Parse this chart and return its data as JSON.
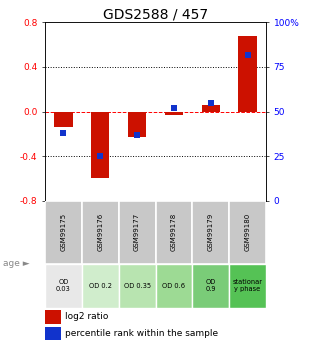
{
  "title": "GDS2588 / 457",
  "samples": [
    "GSM99175",
    "GSM99176",
    "GSM99177",
    "GSM99178",
    "GSM99179",
    "GSM99180"
  ],
  "log2_ratio": [
    -0.14,
    -0.6,
    -0.23,
    -0.03,
    0.06,
    0.68
  ],
  "percentile_rank": [
    38,
    25,
    37,
    52,
    55,
    82
  ],
  "age_labels": [
    "OD\n0.03",
    "OD 0.2",
    "OD 0.35",
    "OD 0.6",
    "OD\n0.9",
    "stationar\ny phase"
  ],
  "age_bg_colors": [
    "#e8e8e8",
    "#d0edcc",
    "#b8e4b0",
    "#9dda94",
    "#7acc78",
    "#55c255"
  ],
  "sample_bg_color": "#c8c8c8",
  "ylim": [
    -0.8,
    0.8
  ],
  "yticks_left": [
    -0.8,
    -0.4,
    0.0,
    0.4,
    0.8
  ],
  "yticks_right": [
    0,
    25,
    50,
    75,
    100
  ],
  "bar_color_red": "#cc1100",
  "bar_color_blue": "#1133cc",
  "bar_width": 0.5,
  "title_fontsize": 10,
  "tick_fontsize": 6.5,
  "legend_fontsize": 6.5,
  "age_label": "age"
}
